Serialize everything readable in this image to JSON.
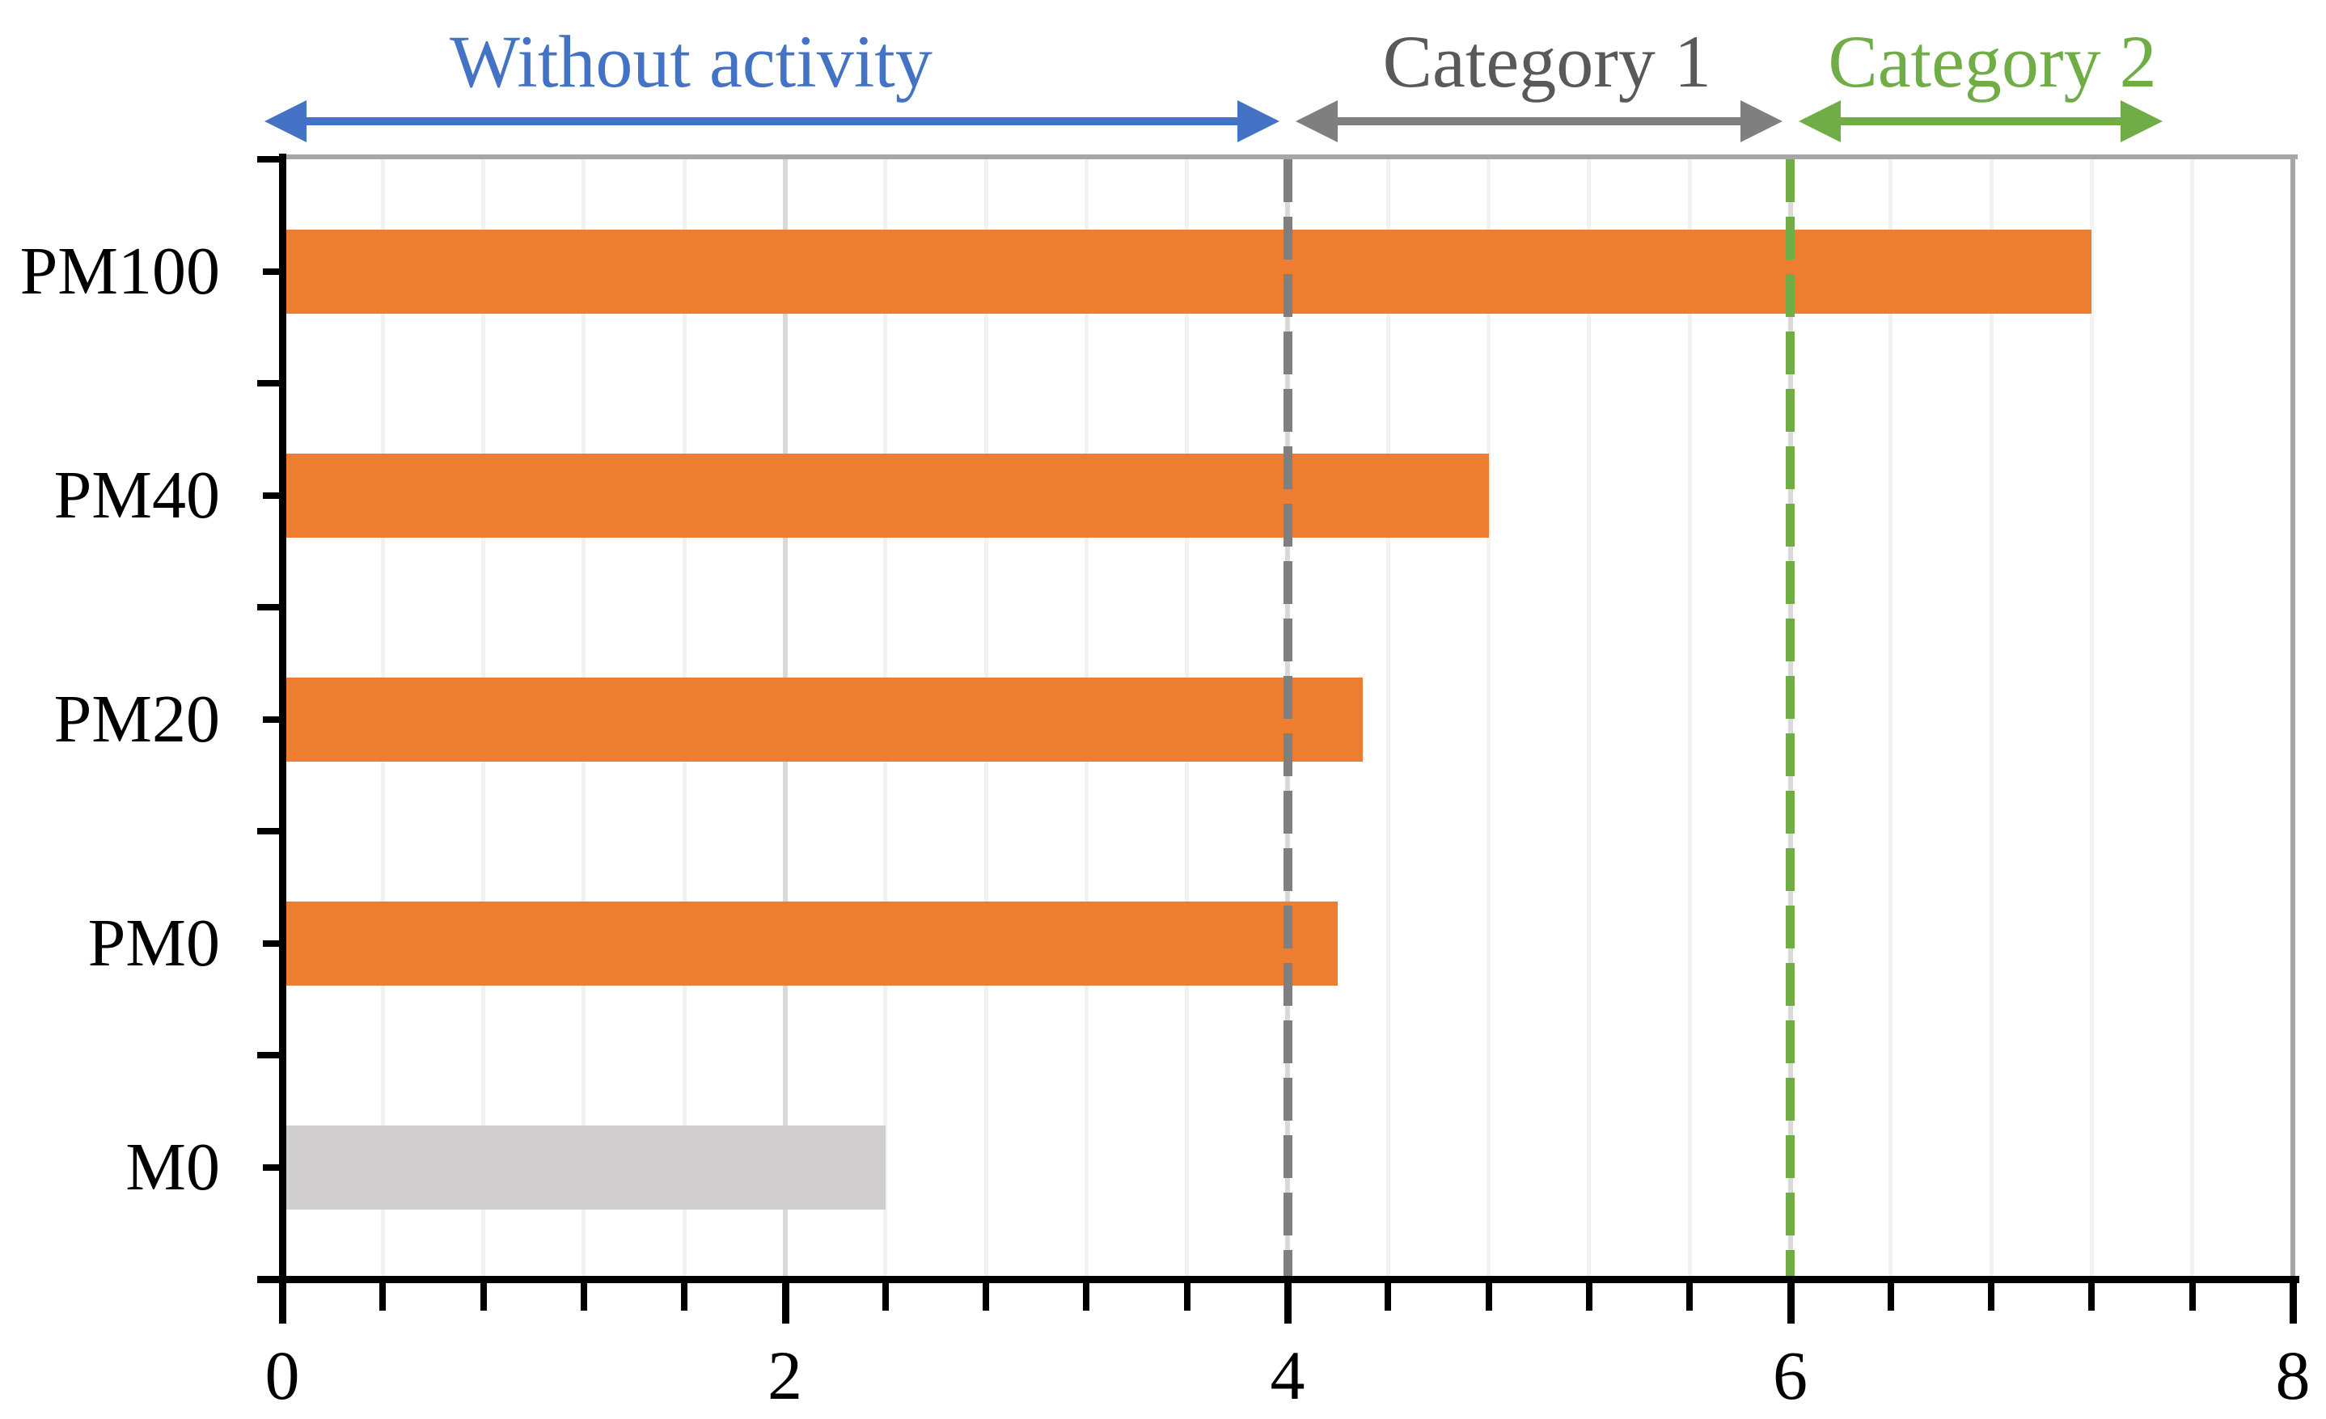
{
  "chart_data": {
    "type": "bar",
    "orientation": "horizontal",
    "title": "",
    "xlabel": "",
    "ylabel": "",
    "categories": [
      "PM100",
      "PM40",
      "PM20",
      "PM0",
      "M0"
    ],
    "values": [
      7.2,
      4.8,
      4.3,
      4.2,
      2.4
    ],
    "bar_colors": [
      "#ED7D31",
      "#ED7D31",
      "#ED7D31",
      "#ED7D31",
      "#D0CECE"
    ],
    "xlim": [
      0,
      8
    ],
    "x_tick_labels": [
      "0",
      "2",
      "4",
      "6",
      "8"
    ],
    "x_major_unit": 2,
    "x_minor_unit": 0.4,
    "grid": "vertical gridlines, minor every 0.4 (light), major every 2 (darker)",
    "legend": "none",
    "axis_color": "#000000",
    "frame_color": "#A6A6A6",
    "gridline_major_color": "#D9D9D9",
    "gridline_minor_color": "#F2F2F2",
    "reference_lines": [
      {
        "value": 4,
        "style": "dashed",
        "color": "#7F7F7F"
      },
      {
        "value": 6,
        "style": "dashed",
        "color": "#70AD47"
      }
    ],
    "annotations": [
      {
        "label": "Without activity",
        "from": 0,
        "to": 4,
        "text_color": "#4472C4",
        "arrow_color": "#4472C4"
      },
      {
        "label": "Category 1",
        "from": 4,
        "to": 6,
        "text_color": "#595959",
        "arrow_color": "#7F7F7F"
      },
      {
        "label": "Category 2",
        "from": 6,
        "to": 7.48,
        "text_color": "#70AD47",
        "arrow_color": "#70AD47"
      }
    ]
  }
}
